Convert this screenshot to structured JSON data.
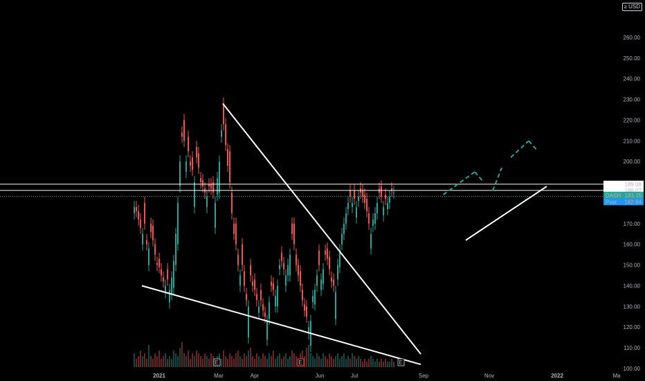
{
  "header": {
    "currency": "USD",
    "currency_symbol": "≥"
  },
  "colors": {
    "background": "#000000",
    "up": "#26a69a",
    "down": "#ef5350",
    "axis_text": "#b2b5be",
    "trendline": "#ffffff",
    "projection": "#26a69a",
    "symbol_label": "#26a69a",
    "post_label": "#2196f3"
  },
  "chart_data": {
    "type": "candlestick",
    "symbol": "DASH",
    "y_axis": {
      "ticks": [
        "100.00",
        "110.00",
        "120.00",
        "130.00",
        "140.00",
        "150.00",
        "160.00",
        "170.00",
        "200.00",
        "210.00",
        "220.00",
        "230.00",
        "240.00",
        "250.00",
        "260.00"
      ],
      "range": [
        99,
        268
      ]
    },
    "x_axis": {
      "ticks": [
        {
          "label": "2021",
          "bold": true
        },
        {
          "label": "Mar",
          "bold": false
        },
        {
          "label": "Apr",
          "bold": false
        },
        {
          "label": "Jun",
          "bold": false
        },
        {
          "label": "Jul",
          "bold": false
        },
        {
          "label": "Sep",
          "bold": false
        },
        {
          "label": "Nov",
          "bold": false
        },
        {
          "label": "2022",
          "bold": true
        },
        {
          "label": "Ma",
          "bold": false
        }
      ]
    },
    "price_labels": [
      {
        "text": "189.08",
        "value": 189.08,
        "style": "line"
      },
      {
        "text": "186.07",
        "value": 186.07,
        "style": "line"
      },
      {
        "text": "DASH",
        "value": 183.15,
        "style": "symbol"
      },
      {
        "text": "183.15",
        "value": 183.15,
        "style": "symbol"
      },
      {
        "text": "Post",
        "value": 182.94,
        "style": "post"
      },
      {
        "text": "182.94",
        "value": 182.94,
        "style": "post"
      }
    ],
    "horizontal_lines": [
      189.08,
      186.07
    ],
    "candles_close": [
      178,
      176,
      172,
      168,
      165,
      170,
      160,
      158,
      166,
      162,
      155,
      150,
      149,
      145,
      142,
      140,
      143,
      138,
      144,
      152,
      165,
      180,
      200,
      212,
      210,
      200,
      205,
      198,
      196,
      190,
      202,
      197,
      190,
      188,
      185,
      183,
      188,
      187,
      185,
      180,
      192,
      200,
      215,
      218,
      208,
      198,
      190,
      175,
      165,
      160,
      150,
      145,
      150,
      140,
      133,
      130,
      145,
      140,
      138,
      133,
      130,
      133,
      128,
      125,
      123,
      132,
      140,
      138,
      135,
      140,
      150,
      152,
      148,
      145,
      150,
      155,
      165,
      160,
      150,
      145,
      140,
      133,
      128,
      125,
      120,
      123,
      135,
      138,
      145,
      150,
      143,
      148,
      155,
      153,
      148,
      142,
      140,
      137,
      150,
      157,
      165,
      170,
      175,
      180,
      183,
      180,
      182,
      178,
      183,
      185,
      183,
      180,
      176,
      170,
      165,
      172,
      175,
      180,
      185,
      183,
      178,
      182,
      180,
      183,
      186,
      185
    ],
    "candles_open_offset": [
      -3,
      2,
      4,
      4,
      -5,
      10,
      2,
      -8,
      4,
      7,
      5,
      1,
      4,
      3,
      2,
      -3,
      5,
      -6,
      -8,
      -13,
      -15,
      -20,
      -12,
      2,
      10,
      -5,
      7,
      2,
      6,
      -12,
      5,
      7,
      2,
      3,
      2,
      -5,
      1,
      2,
      5,
      -12,
      -8,
      -15,
      -3,
      10,
      10,
      8,
      15,
      10,
      5,
      10,
      5,
      -5,
      10,
      7,
      3,
      -15,
      5,
      2,
      5,
      3,
      -3,
      5,
      3,
      2,
      -9,
      -8,
      2,
      3,
      -5,
      -10,
      -2,
      4,
      3,
      -5,
      -5,
      -10,
      5,
      10,
      5,
      5,
      7,
      5,
      3,
      5,
      -3,
      -12,
      -3,
      -7,
      -5,
      7,
      -5,
      -7,
      2,
      5,
      6,
      2,
      3,
      -13,
      -7,
      -8,
      -5,
      -5,
      -5,
      -3,
      3,
      -2,
      4,
      -5,
      -2,
      2,
      3,
      4,
      6,
      5,
      -7,
      -3,
      -5,
      -5,
      2,
      5,
      -4,
      2,
      -3,
      -3,
      1,
      0
    ],
    "volumes": [
      5,
      3,
      4,
      6,
      4,
      5,
      3,
      8,
      4,
      3,
      5,
      4,
      6,
      3,
      4,
      5,
      3,
      4,
      3,
      6,
      5,
      4,
      7,
      9,
      5,
      4,
      6,
      3,
      5,
      4,
      6,
      5,
      4,
      3,
      5,
      4,
      3,
      5,
      4,
      3,
      4,
      5,
      3,
      6,
      4,
      3,
      5,
      4,
      3,
      5,
      6,
      4,
      3,
      5,
      4,
      6,
      7,
      4,
      3,
      5,
      4,
      3,
      5,
      4,
      3,
      5,
      4,
      6,
      3,
      4,
      5,
      3,
      4,
      5,
      3,
      4,
      6,
      5,
      4,
      3,
      5,
      6,
      4,
      7,
      8,
      5,
      4,
      3,
      5,
      4,
      3,
      5,
      4,
      3,
      5,
      4,
      3,
      4,
      5,
      3,
      4,
      5,
      3,
      4,
      3,
      5,
      4,
      3,
      4,
      3,
      2,
      3,
      2,
      3,
      4,
      3,
      2,
      3,
      2,
      3,
      2,
      3,
      2,
      2,
      3,
      2
    ],
    "trendlines": [
      {
        "from": [
          1,
          140
        ],
        "to": [
          32,
          102
        ],
        "kind": "solid"
      },
      {
        "from": [
          10,
          228
        ],
        "to": [
          32,
          107
        ],
        "kind": "solid"
      },
      {
        "from": [
          37,
          162
        ],
        "to": [
          46,
          188
        ],
        "kind": "solid"
      },
      {
        "from": [
          34.5,
          184
        ],
        "to": [
          38,
          195
        ],
        "kind": "dashed"
      },
      {
        "from": [
          38,
          195
        ],
        "to": [
          39,
          190
        ],
        "kind": "dashed"
      },
      {
        "from": [
          40,
          186
        ],
        "to": [
          41,
          197
        ],
        "kind": "dashed"
      },
      {
        "from": [
          42,
          202
        ],
        "to": [
          44,
          210
        ],
        "kind": "dashed"
      },
      {
        "from": [
          44,
          210
        ],
        "to": [
          45,
          205
        ],
        "kind": "dashed"
      }
    ]
  }
}
